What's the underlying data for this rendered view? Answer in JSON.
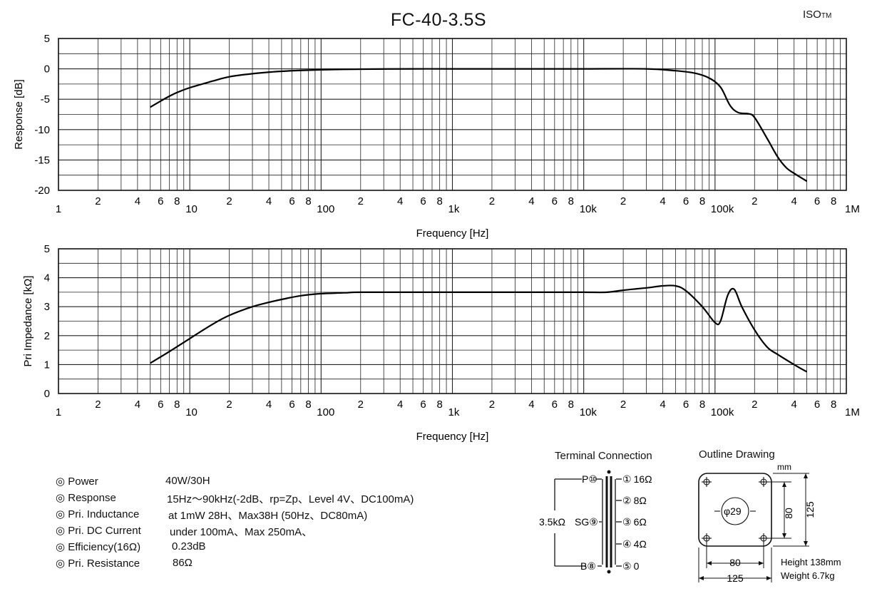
{
  "brand": {
    "main": "ISO",
    "suffix": "TM"
  },
  "chart_data": [
    {
      "type": "line",
      "title": "FC-40-3.5S",
      "xlabel": "Frequency [Hz]",
      "ylabel": "Response [dB]",
      "xscale": "log",
      "xlim": [
        1,
        1000000
      ],
      "ylim": [
        -20,
        5
      ],
      "yticks": [
        5,
        0,
        -5,
        -10,
        -15,
        -20
      ],
      "ytick_labels": [
        "5",
        "0",
        "-5",
        "-10",
        "-15",
        "-20"
      ],
      "grid": true,
      "series": [
        {
          "x": [
            5,
            6,
            7,
            8,
            10,
            15,
            20,
            30,
            50,
            100,
            200,
            500,
            1000,
            5000,
            10000,
            30000,
            50000,
            70000,
            90000,
            110000,
            130000,
            150000,
            180000,
            200000,
            250000,
            300000,
            350000,
            400000,
            500000
          ],
          "y": [
            -6.3,
            -5.3,
            -4.5,
            -3.9,
            -3.1,
            -2.0,
            -1.3,
            -0.8,
            -0.4,
            -0.15,
            -0.05,
            0,
            0,
            0,
            0,
            0,
            -0.3,
            -0.7,
            -1.5,
            -3.0,
            -6.0,
            -7.2,
            -7.4,
            -8.0,
            -11.5,
            -14.5,
            -16.3,
            -17.2,
            -18.5
          ]
        }
      ]
    },
    {
      "type": "line",
      "xlabel": "Frequency [Hz]",
      "ylabel": "Pri Impedance [kΩ]",
      "xscale": "log",
      "xlim": [
        1,
        1000000
      ],
      "ylim": [
        0,
        5
      ],
      "yticks": [
        5,
        4,
        3,
        2,
        1,
        0
      ],
      "ytick_labels": [
        "5",
        "4",
        "3",
        "2",
        "1",
        "0"
      ],
      "grid": true,
      "series": [
        {
          "x": [
            5,
            7,
            10,
            15,
            20,
            30,
            40,
            50,
            70,
            100,
            150,
            200,
            500,
            1000,
            5000,
            10000,
            15000,
            20000,
            30000,
            40000,
            50000,
            60000,
            80000,
            100000,
            110000,
            125000,
            140000,
            160000,
            200000,
            250000,
            300000,
            400000,
            500000
          ],
          "y": [
            1.05,
            1.45,
            1.9,
            2.4,
            2.7,
            3.0,
            3.15,
            3.25,
            3.38,
            3.45,
            3.48,
            3.5,
            3.5,
            3.5,
            3.5,
            3.5,
            3.5,
            3.57,
            3.65,
            3.72,
            3.72,
            3.55,
            3.0,
            2.45,
            2.5,
            3.4,
            3.6,
            3.0,
            2.2,
            1.6,
            1.35,
            1.0,
            0.75
          ]
        }
      ]
    }
  ],
  "xticks": [
    {
      "v": 1,
      "t": "1",
      "major": true
    },
    {
      "v": 2,
      "t": "2"
    },
    {
      "v": 4,
      "t": "4"
    },
    {
      "v": 6,
      "t": "6"
    },
    {
      "v": 8,
      "t": "8"
    },
    {
      "v": 10,
      "t": "10",
      "major": true
    },
    {
      "v": 20,
      "t": "2"
    },
    {
      "v": 40,
      "t": "4"
    },
    {
      "v": 60,
      "t": "6"
    },
    {
      "v": 80,
      "t": "8"
    },
    {
      "v": 100,
      "t": "100",
      "major": true
    },
    {
      "v": 200,
      "t": "2"
    },
    {
      "v": 400,
      "t": "4"
    },
    {
      "v": 600,
      "t": "6"
    },
    {
      "v": 800,
      "t": "8"
    },
    {
      "v": 1000,
      "t": "1k",
      "major": true
    },
    {
      "v": 2000,
      "t": "2"
    },
    {
      "v": 4000,
      "t": "4"
    },
    {
      "v": 6000,
      "t": "6"
    },
    {
      "v": 8000,
      "t": "8"
    },
    {
      "v": 10000,
      "t": "10k",
      "major": true
    },
    {
      "v": 20000,
      "t": "2"
    },
    {
      "v": 40000,
      "t": "4"
    },
    {
      "v": 60000,
      "t": "6"
    },
    {
      "v": 80000,
      "t": "8"
    },
    {
      "v": 100000,
      "t": "100k",
      "major": true
    },
    {
      "v": 200000,
      "t": "2"
    },
    {
      "v": 400000,
      "t": "4"
    },
    {
      "v": 600000,
      "t": "6"
    },
    {
      "v": 800000,
      "t": "8"
    },
    {
      "v": 1000000,
      "t": "1M",
      "major": true
    }
  ],
  "specs": [
    {
      "label": "◎ Power",
      "value": "40W/30H"
    },
    {
      "label": "◎ Response",
      "value": "15Hz～90kHz(-2dB、rp=Zp、Level 4V、DC100mA)"
    },
    {
      "label": "◎ Pri. Inductance",
      "value": "at 1mW 28H、Max38H (50Hz、DC80mA)"
    },
    {
      "label": "◎ Pri. DC Current",
      "value": "under 100mA、Max 250mA、"
    },
    {
      "label": "◎ Efficiency(16Ω)",
      "value": "0.23dB"
    },
    {
      "label": "◎ Pri. Resistance",
      "value": "86Ω"
    }
  ],
  "terminal": {
    "title": "Terminal Connection",
    "impedance": "3.5kΩ",
    "primary": [
      {
        "name": "P",
        "num": "⑩"
      },
      {
        "name": "SG",
        "num": "⑨"
      },
      {
        "name": "B",
        "num": "⑧"
      }
    ],
    "secondary": [
      {
        "num": "①",
        "value": "16Ω"
      },
      {
        "num": "②",
        "value": "8Ω"
      },
      {
        "num": "③",
        "value": "6Ω"
      },
      {
        "num": "④",
        "value": "4Ω"
      },
      {
        "num": "⑤",
        "value": "0"
      }
    ]
  },
  "outline": {
    "title": "Outline Drawing",
    "unit": "mm",
    "hole": "φ29",
    "dim_inner_h": "80",
    "dim_outer_h": "125",
    "dim_inner_w": "80",
    "dim_outer_w": "125",
    "height": "Height 138mm",
    "weight": "Weight 6.7kg"
  }
}
